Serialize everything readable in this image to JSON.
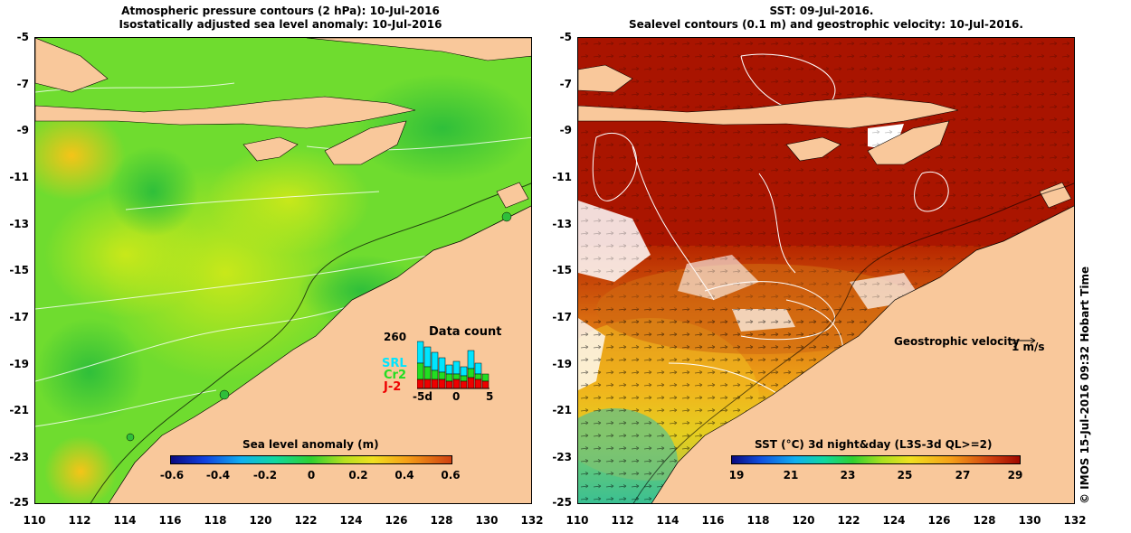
{
  "left": {
    "title_line1": "Atmospheric pressure contours (2 hPa): 10-Jul-2016",
    "title_line2": "Isostatically adjusted sea level anomaly: 10-Jul-2016",
    "yticks": [
      "-5",
      "-7",
      "-9",
      "-11",
      "-13",
      "-15",
      "-17",
      "-19",
      "-21",
      "-23",
      "-25"
    ],
    "xticks": [
      "110",
      "112",
      "114",
      "116",
      "118",
      "120",
      "122",
      "124",
      "126",
      "128",
      "130",
      "132"
    ],
    "colorbar": {
      "title": "Sea level anomaly (m)",
      "ticks": [
        "-0.6",
        "-0.4",
        "-0.2",
        "0",
        "0.2",
        "0.4",
        "0.6"
      ]
    },
    "datacount": {
      "max_label": "260",
      "title": "Data count",
      "sat1": "SRL",
      "sat2": "Cr2",
      "sat3": "J-2",
      "x_min": "-5d",
      "x_mid": "0",
      "x_max": "5",
      "sat1_color": "#00e5ff",
      "sat2_color": "#22dd22",
      "sat3_color": "#ee0000"
    }
  },
  "right": {
    "title_line1": "SST: 09-Jul-2016.",
    "title_line2": "Sealevel contours (0.1 m) and geostrophic velocity: 10-Jul-2016.",
    "yticks": [
      "-5",
      "-7",
      "-9",
      "-11",
      "-13",
      "-15",
      "-17",
      "-19",
      "-21",
      "-23",
      "-25"
    ],
    "xticks": [
      "110",
      "112",
      "114",
      "116",
      "118",
      "120",
      "122",
      "124",
      "126",
      "128",
      "130",
      "132"
    ],
    "velocity_label": "Geostrophic velocity",
    "velocity_scale": "1 m/s",
    "colorbar": {
      "title": "SST (°C) 3d night&day (L3S-3d QL>=2)",
      "ticks": [
        "19",
        "21",
        "23",
        "25",
        "27",
        "29"
      ]
    }
  },
  "credit": "© IMOS 15-Jul-2016 09:32 Hobart Time",
  "colors": {
    "land": "#f9c89b",
    "sla_background": "#6fdc2f",
    "sst_background": "#b81800"
  }
}
